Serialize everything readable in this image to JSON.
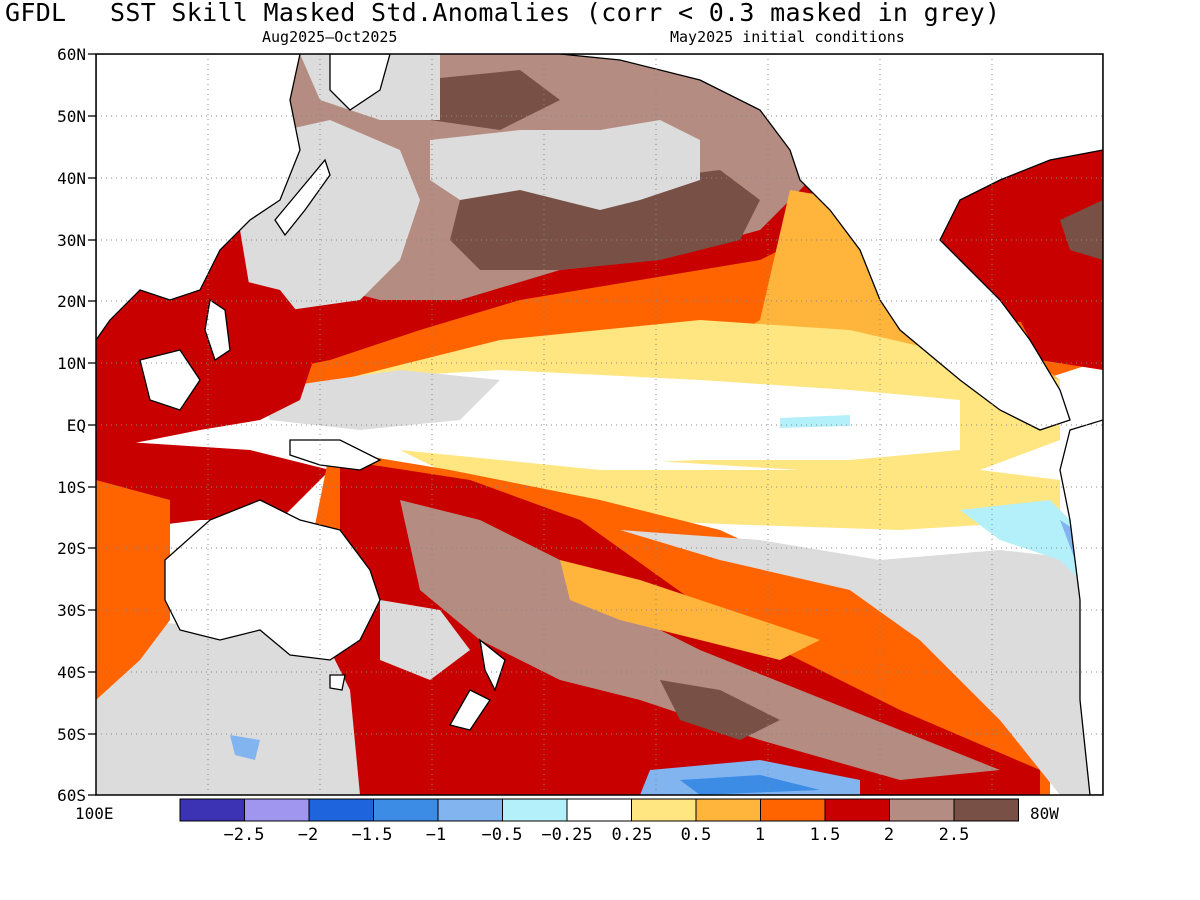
{
  "title": {
    "model": "GFDL",
    "text": "SST Skill Masked Std.Anomalies (corr < 0.3 masked in grey)"
  },
  "subtitle": {
    "period": "Aug2025—Oct2025",
    "init": "May2025 initial conditions"
  },
  "map": {
    "region": "Pacific basin",
    "lat_labels": [
      "60N",
      "50N",
      "40N",
      "30N",
      "20N",
      "10N",
      "EQ",
      "10S",
      "20S",
      "30S",
      "40S",
      "50S",
      "60S"
    ],
    "lon_left": "100E",
    "lon_right": "80W",
    "mask_color": "#dcdcdc",
    "mask_rule": "corr < 0.3 masked in grey"
  },
  "colorbar": {
    "colors": [
      "#3c32b4",
      "#a096f0",
      "#1e64dc",
      "#3c8ce6",
      "#82b4f0",
      "#b4f0fa",
      "#ffffff",
      "#ffe680",
      "#ffb43c",
      "#ff6400",
      "#c80000",
      "#b48c82",
      "#785046"
    ],
    "labels": [
      "−2.5",
      "−2",
      "−1.5",
      "−1",
      "−0.5",
      "−0.25",
      "0.25",
      "0.5",
      "1",
      "1.5",
      "2",
      "2.5"
    ]
  }
}
